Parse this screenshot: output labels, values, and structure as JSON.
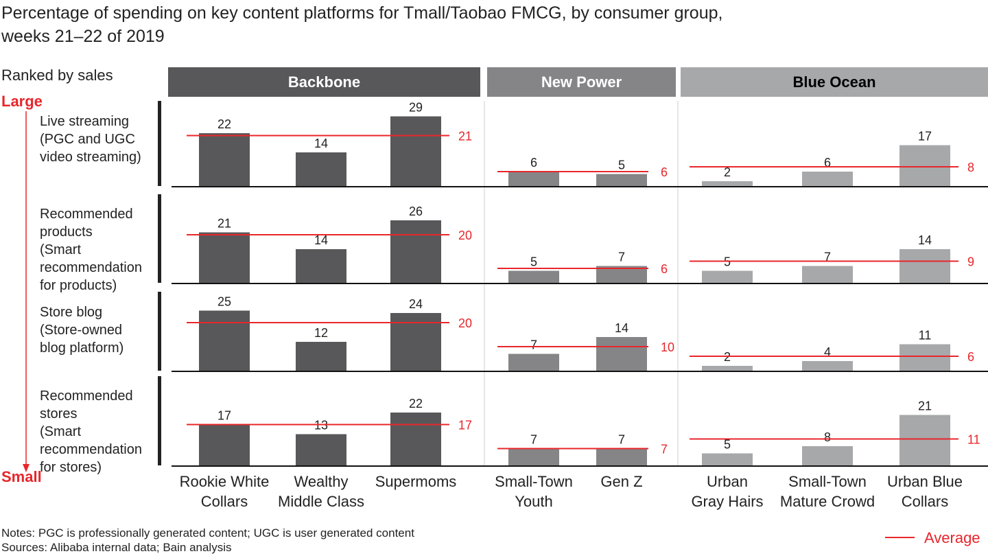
{
  "chart_data": {
    "type": "bar",
    "title": "Percentage of spending on key content platforms for Tmall/Taobao FMCG, by consumer group,",
    "title_line2": "weeks 21–22 of 2019",
    "rank_label": "Ranked by sales",
    "rank_top": "Large",
    "rank_bottom": "Small",
    "groups": [
      {
        "name": "Backbone",
        "color": "#58585a",
        "text_color": "#ffffff",
        "categories": [
          "Rookie White Collars",
          "Wealthy Middle Class",
          "Supermoms"
        ]
      },
      {
        "name": "New Power",
        "color": "#858587",
        "text_color": "#ffffff",
        "categories": [
          "Small-Town Youth",
          "Gen Z"
        ]
      },
      {
        "name": "Blue Ocean",
        "color": "#a7a8aa",
        "text_color": "#000000",
        "categories": [
          "Urban Gray Hairs",
          "Small-Town Mature Crowd",
          "Urban Blue Collars"
        ]
      }
    ],
    "category_labels": [
      [
        "Rookie White",
        "Collars"
      ],
      [
        "Wealthy",
        "Middle Class"
      ],
      [
        "Supermoms"
      ],
      [
        "Small-Town",
        "Youth"
      ],
      [
        "Gen Z"
      ],
      [
        "Urban",
        "Gray Hairs"
      ],
      [
        "Small-Town",
        "Mature Crowd"
      ],
      [
        "Urban Blue",
        "Collars"
      ]
    ],
    "rows": [
      {
        "label": [
          "Live streaming",
          "(PGC and UGC",
          "video streaming)"
        ],
        "values": [
          [
            22,
            14,
            29
          ],
          [
            6,
            5
          ],
          [
            2,
            6,
            17
          ]
        ],
        "averages": [
          21,
          6,
          8
        ]
      },
      {
        "label": [
          "Recommended",
          "products",
          "(Smart",
          "recommendation",
          "for products)"
        ],
        "values": [
          [
            21,
            14,
            26
          ],
          [
            5,
            7
          ],
          [
            5,
            7,
            14
          ]
        ],
        "averages": [
          20,
          6,
          9
        ]
      },
      {
        "label": [
          "Store blog",
          "(Store-owned",
          "blog platform)"
        ],
        "values": [
          [
            25,
            12,
            24
          ],
          [
            7,
            14
          ],
          [
            2,
            4,
            11
          ]
        ],
        "averages": [
          20,
          10,
          6
        ]
      },
      {
        "label": [
          "Recommended",
          "stores",
          "(Smart",
          "recommendation",
          "for stores)"
        ],
        "values": [
          [
            17,
            13,
            22
          ],
          [
            7,
            7
          ],
          [
            5,
            8,
            21
          ]
        ],
        "averages": [
          17,
          7,
          11
        ]
      }
    ],
    "legend": {
      "label": "Average",
      "color": "#e8262b",
      "position": "bottom-right"
    },
    "notes": "Notes: PGC is professionally generated content; UGC is user generated content",
    "sources": "Sources: Alibaba internal data; Bain analysis",
    "accent_color": "#e8262b"
  }
}
